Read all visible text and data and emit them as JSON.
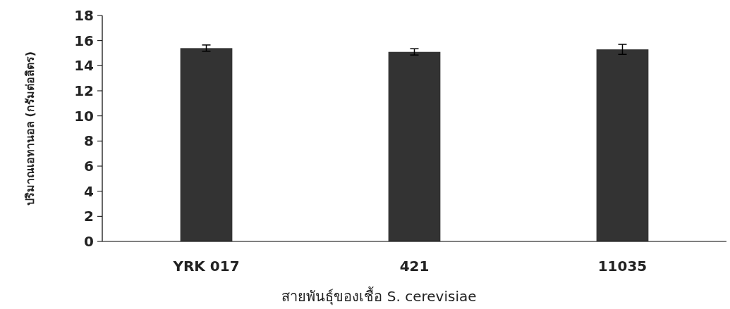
{
  "chart_data": {
    "type": "bar",
    "xlabel": "สายพันธุ์ของเชื้อ S. cerevisiae",
    "ylabel": "ปริมาณเอทานอล (กรัมต่อลิตร)",
    "categories": [
      "YRK 017",
      "421",
      "11035"
    ],
    "values": [
      15.4,
      15.1,
      15.3
    ],
    "errors": [
      0.25,
      0.25,
      0.4
    ],
    "color": "#333333",
    "ylim": [
      0,
      18
    ],
    "yticks": [
      0,
      2,
      4,
      6,
      8,
      10,
      12,
      14,
      16,
      18
    ],
    "grid": false
  }
}
